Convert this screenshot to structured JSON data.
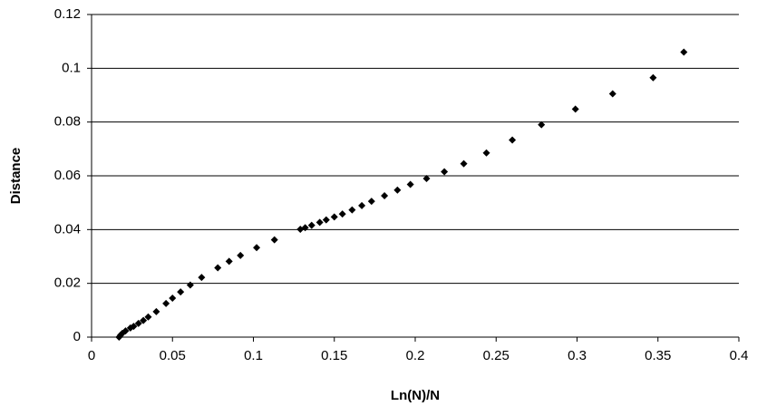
{
  "chart_data": {
    "type": "scatter",
    "xlabel": "Ln(N)/N",
    "ylabel": "Distance",
    "x": [
      0.366,
      0.347,
      0.322,
      0.299,
      0.278,
      0.26,
      0.244,
      0.23,
      0.218,
      0.207,
      0.197,
      0.189,
      0.181,
      0.173,
      0.167,
      0.161,
      0.155,
      0.15,
      0.145,
      0.141,
      0.136,
      0.132,
      0.129,
      0.113,
      0.102,
      0.092,
      0.085,
      0.078,
      0.068,
      0.061,
      0.055,
      0.05,
      0.046,
      0.04,
      0.035,
      0.032,
      0.029,
      0.026,
      0.024,
      0.021,
      0.019,
      0.018,
      0.017
    ],
    "values": [
      0.106,
      0.0965,
      0.0905,
      0.0848,
      0.079,
      0.0733,
      0.0685,
      0.0645,
      0.0615,
      0.059,
      0.0568,
      0.0547,
      0.0526,
      0.0505,
      0.0489,
      0.0473,
      0.0458,
      0.0447,
      0.0436,
      0.0427,
      0.0416,
      0.0407,
      0.0401,
      0.0362,
      0.0333,
      0.0304,
      0.0282,
      0.0258,
      0.0222,
      0.0194,
      0.0168,
      0.0145,
      0.0125,
      0.0095,
      0.0075,
      0.0062,
      0.0051,
      0.004,
      0.0034,
      0.0023,
      0.0014,
      0.0008,
      0
    ],
    "color": "#000000",
    "xlim": [
      0,
      0.4
    ],
    "xticks": [
      0,
      0.05,
      0.1,
      0.15,
      0.2,
      0.25,
      0.3,
      0.35,
      0.4
    ],
    "ylim": [
      0,
      0.12
    ],
    "yticks": [
      0,
      0.02,
      0.04,
      0.06,
      0.08,
      0.1,
      0.12
    ],
    "grid": true
  }
}
